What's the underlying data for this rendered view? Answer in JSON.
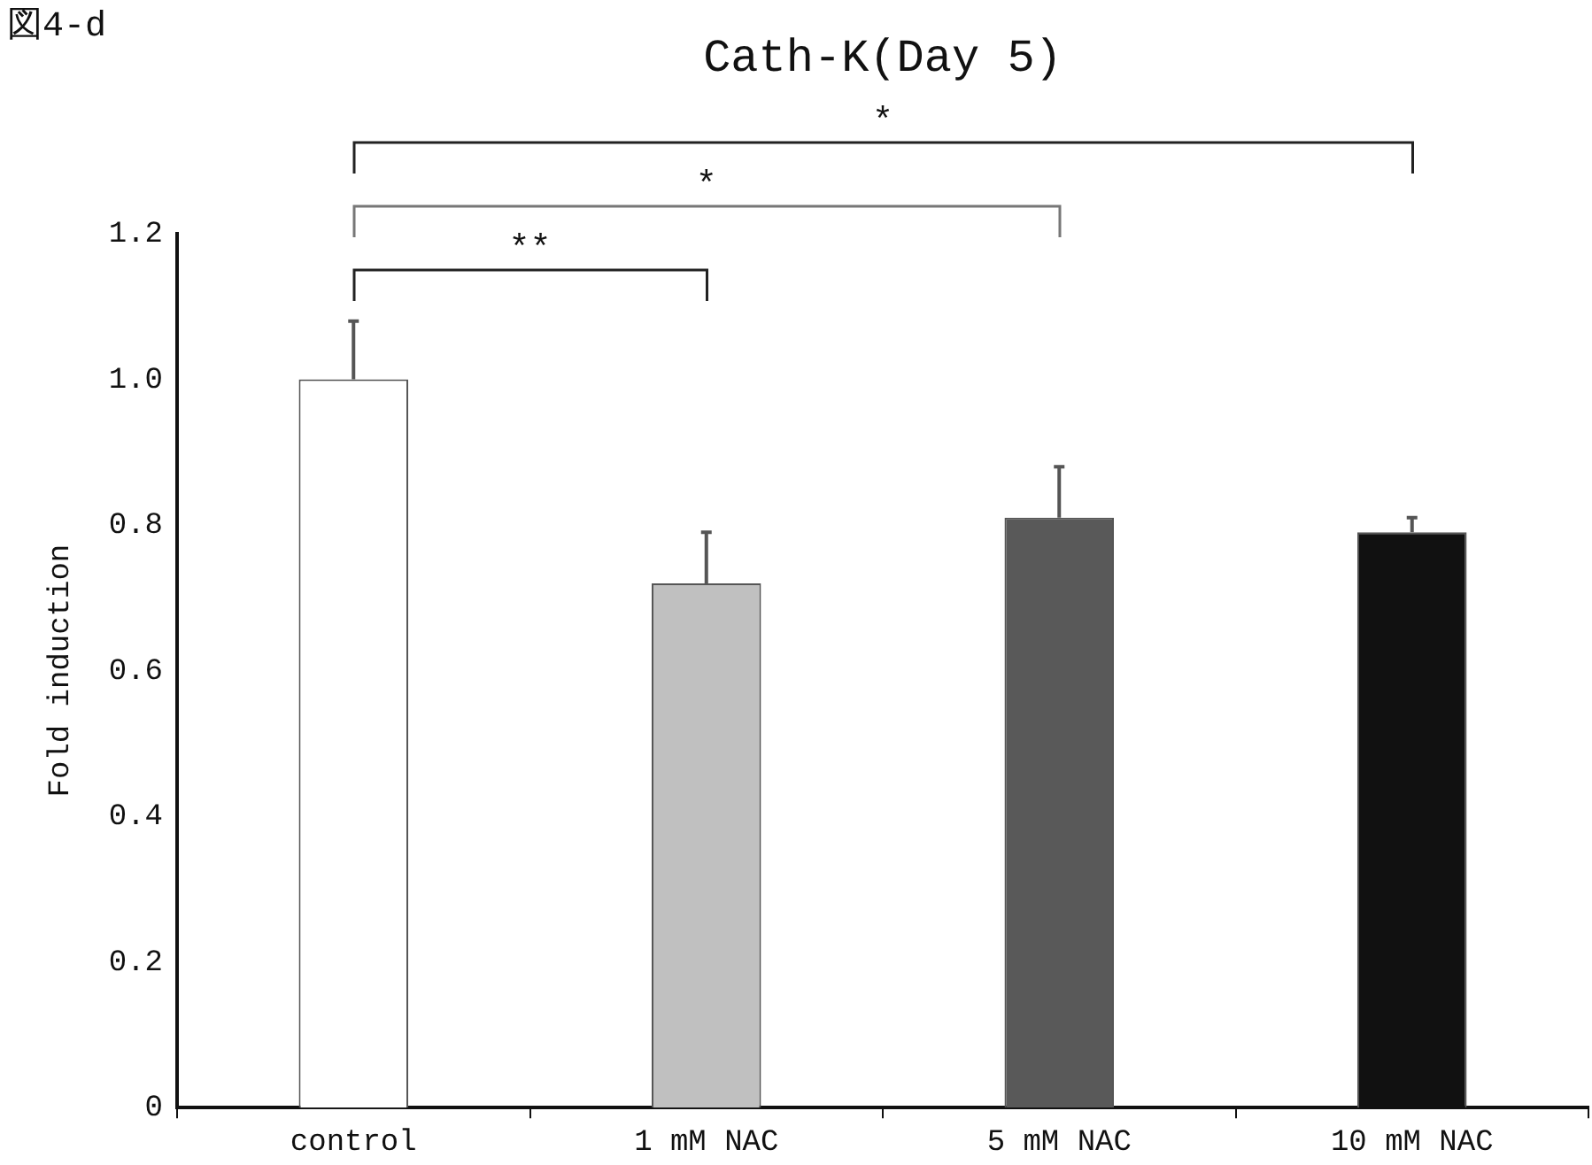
{
  "chart_data": {
    "type": "bar",
    "title": "Cath-K(Day 5)",
    "ylabel": "Fold induction",
    "categories": [
      "control",
      "1 mM NAC",
      "5 mM NAC",
      "10 mM NAC"
    ],
    "values": [
      1.0,
      0.72,
      0.81,
      0.79
    ],
    "colors": [
      "#ffffff",
      "#c0c0c0",
      "#595959",
      "#111111"
    ],
    "errors": [
      [
        1.0,
        1.08
      ],
      [
        0.72,
        0.79
      ],
      [
        0.81,
        0.88
      ],
      [
        0.79,
        0.81
      ]
    ],
    "ylim": [
      0,
      1.2
    ],
    "yticks": [
      0,
      0.2,
      0.4,
      0.6,
      0.8,
      {
        "value": 1,
        "label": "1.0"
      },
      1.2
    ],
    "annotations": [
      "図4-d",
      "**",
      "*",
      "*"
    ]
  }
}
